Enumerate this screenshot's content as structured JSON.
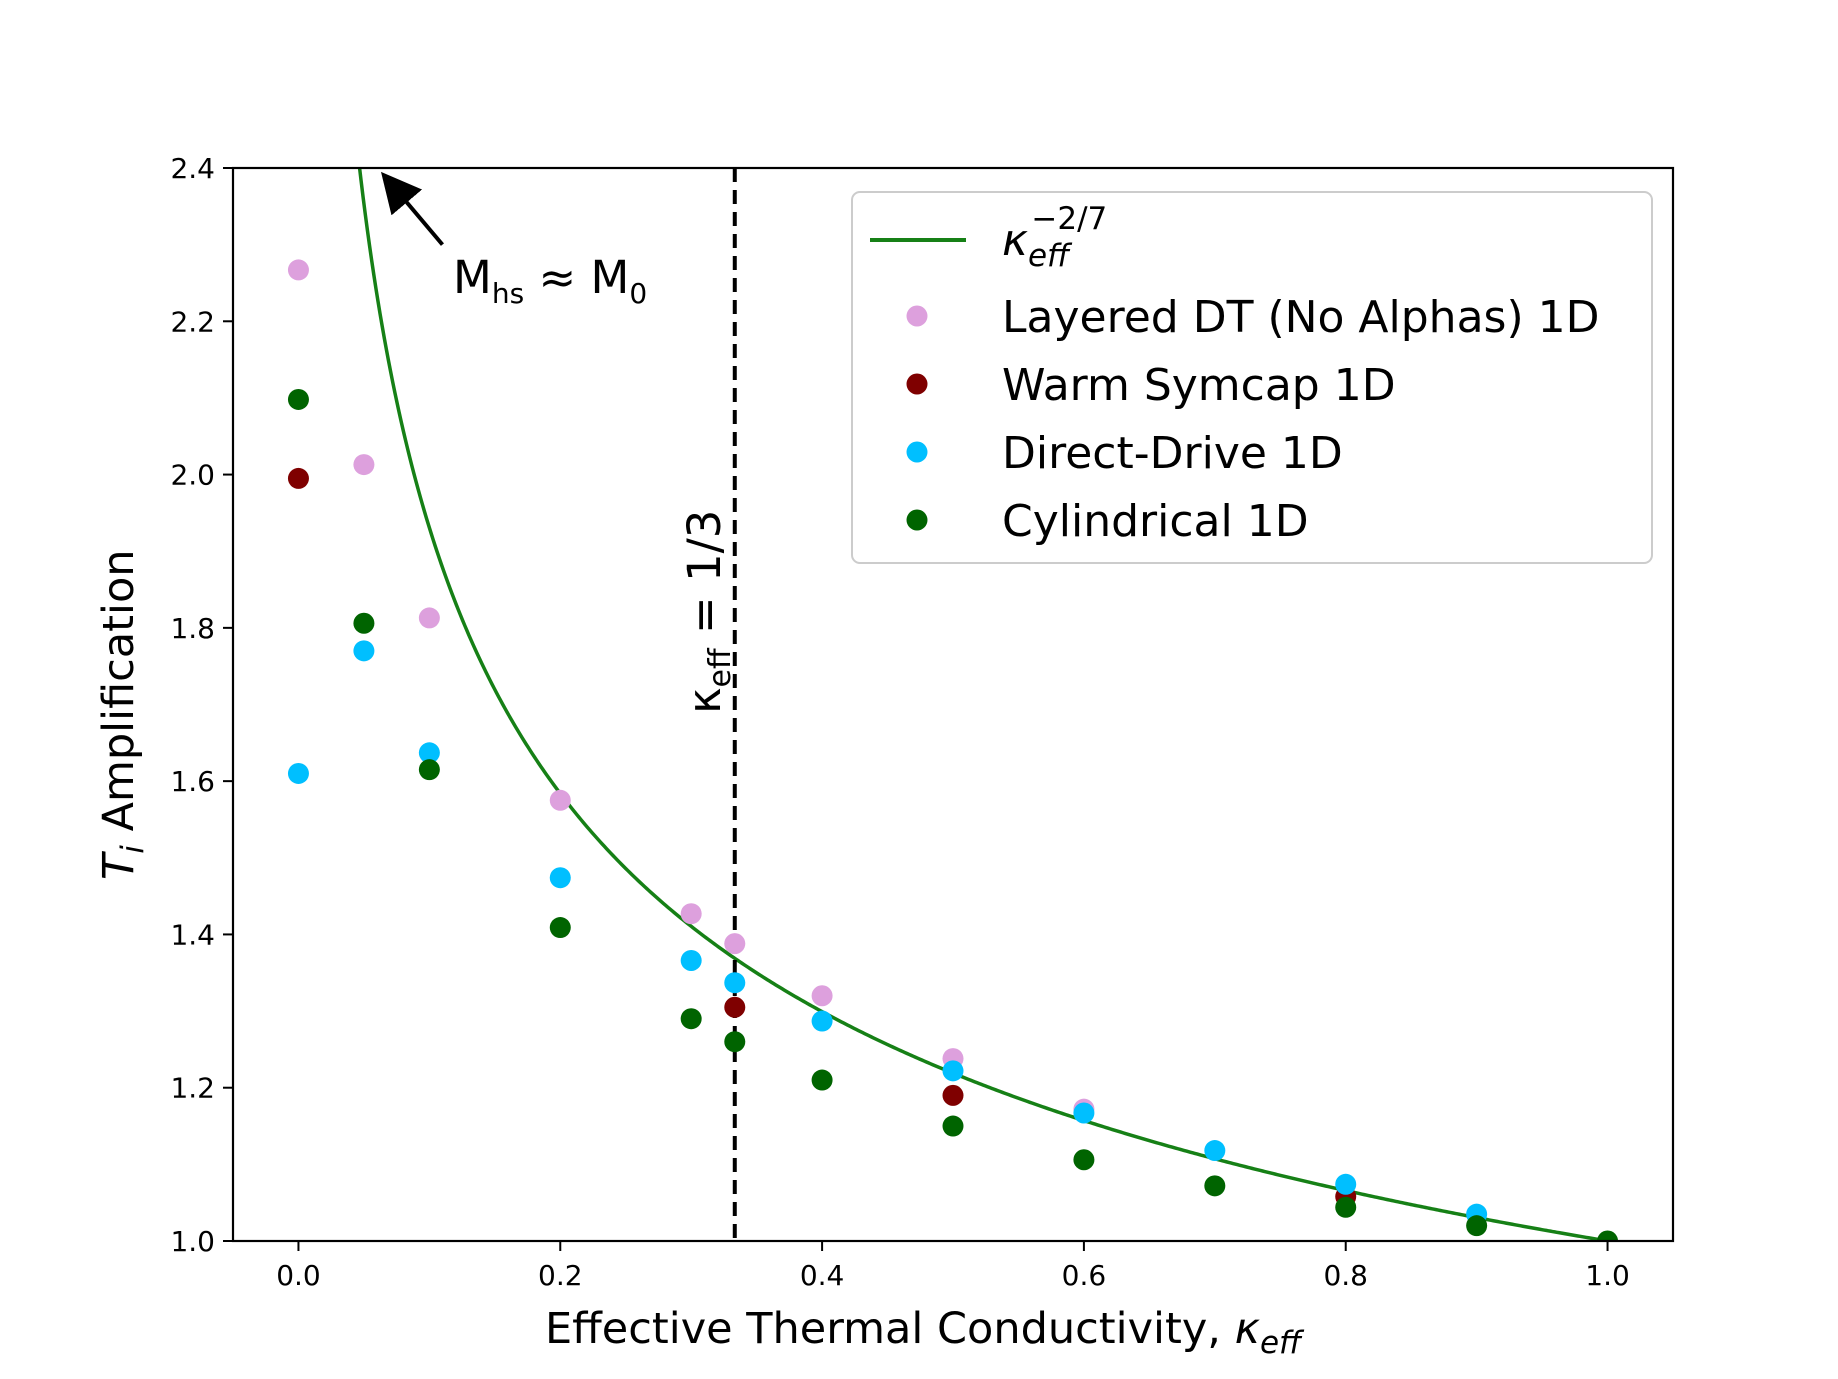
{
  "chart_data": {
    "type": "scatter",
    "title": "",
    "xlabel": {
      "main": "Effective Thermal Conductivity, ",
      "kappa": "κ",
      "sub": "eff"
    },
    "ylabel": {
      "main": "T",
      "sub": "i",
      "rest": " Amplification"
    },
    "xlim": [
      -0.05,
      1.05
    ],
    "ylim": [
      1.0,
      2.4
    ],
    "xticks": [
      0.0,
      0.2,
      0.4,
      0.6,
      0.8,
      1.0
    ],
    "xtick_labels": [
      "0.0",
      "0.2",
      "0.4",
      "0.6",
      "0.8",
      "1.0"
    ],
    "yticks": [
      1.0,
      1.2,
      1.4,
      1.6,
      1.8,
      2.0,
      2.2,
      2.4
    ],
    "ytick_labels": [
      "1.0",
      "1.2",
      "1.4",
      "1.6",
      "1.8",
      "2.0",
      "2.2",
      "2.4"
    ],
    "grid": false,
    "legend_position": "top-right",
    "curve": {
      "name": "κ_eff^(-2/7)",
      "legend_base": "κ",
      "legend_sub": "eff",
      "legend_sup": "−2/7",
      "exponent": -0.2857142857,
      "color": "#168016"
    },
    "vline": {
      "x": 0.3333,
      "label_base": "κ",
      "label_sub": "eff",
      "label_rest": " = 1/3",
      "style": "dashed",
      "color": "#000000"
    },
    "annotation": {
      "text_base": "M",
      "text_sub1": "hs",
      "text_mid": " ≈ M",
      "text_sub2": "0",
      "arrow_from": [
        0.11,
        2.3
      ],
      "arrow_to": [
        0.067,
        2.387
      ]
    },
    "series": [
      {
        "name": "Layered DT (No Alphas) 1D",
        "color": "#dda0dd",
        "x": [
          0.0,
          0.05,
          0.1,
          0.2,
          0.3,
          0.3333,
          0.4,
          0.5,
          0.6
        ],
        "y": [
          2.267,
          2.013,
          1.813,
          1.575,
          1.427,
          1.388,
          1.32,
          1.238,
          1.172
        ]
      },
      {
        "name": "Warm Symcap 1D",
        "color": "#7f0000",
        "x": [
          0.0,
          0.3333,
          0.5,
          0.8
        ],
        "y": [
          1.995,
          1.305,
          1.19,
          1.058
        ]
      },
      {
        "name": "Direct-Drive 1D",
        "color": "#00bfff",
        "x": [
          0.0,
          0.05,
          0.1,
          0.2,
          0.3,
          0.3333,
          0.4,
          0.5,
          0.6,
          0.7,
          0.8,
          0.9
        ],
        "y": [
          1.61,
          1.77,
          1.637,
          1.474,
          1.366,
          1.337,
          1.287,
          1.222,
          1.167,
          1.118,
          1.074,
          1.035
        ]
      },
      {
        "name": "Cylindrical 1D",
        "color": "#006400",
        "x": [
          0.0,
          0.05,
          0.1,
          0.2,
          0.3,
          0.3333,
          0.4,
          0.5,
          0.6,
          0.7,
          0.8,
          0.9,
          1.0
        ],
        "y": [
          2.098,
          1.806,
          1.615,
          1.409,
          1.29,
          1.26,
          1.21,
          1.15,
          1.106,
          1.072,
          1.044,
          1.02,
          1.0
        ]
      }
    ]
  }
}
